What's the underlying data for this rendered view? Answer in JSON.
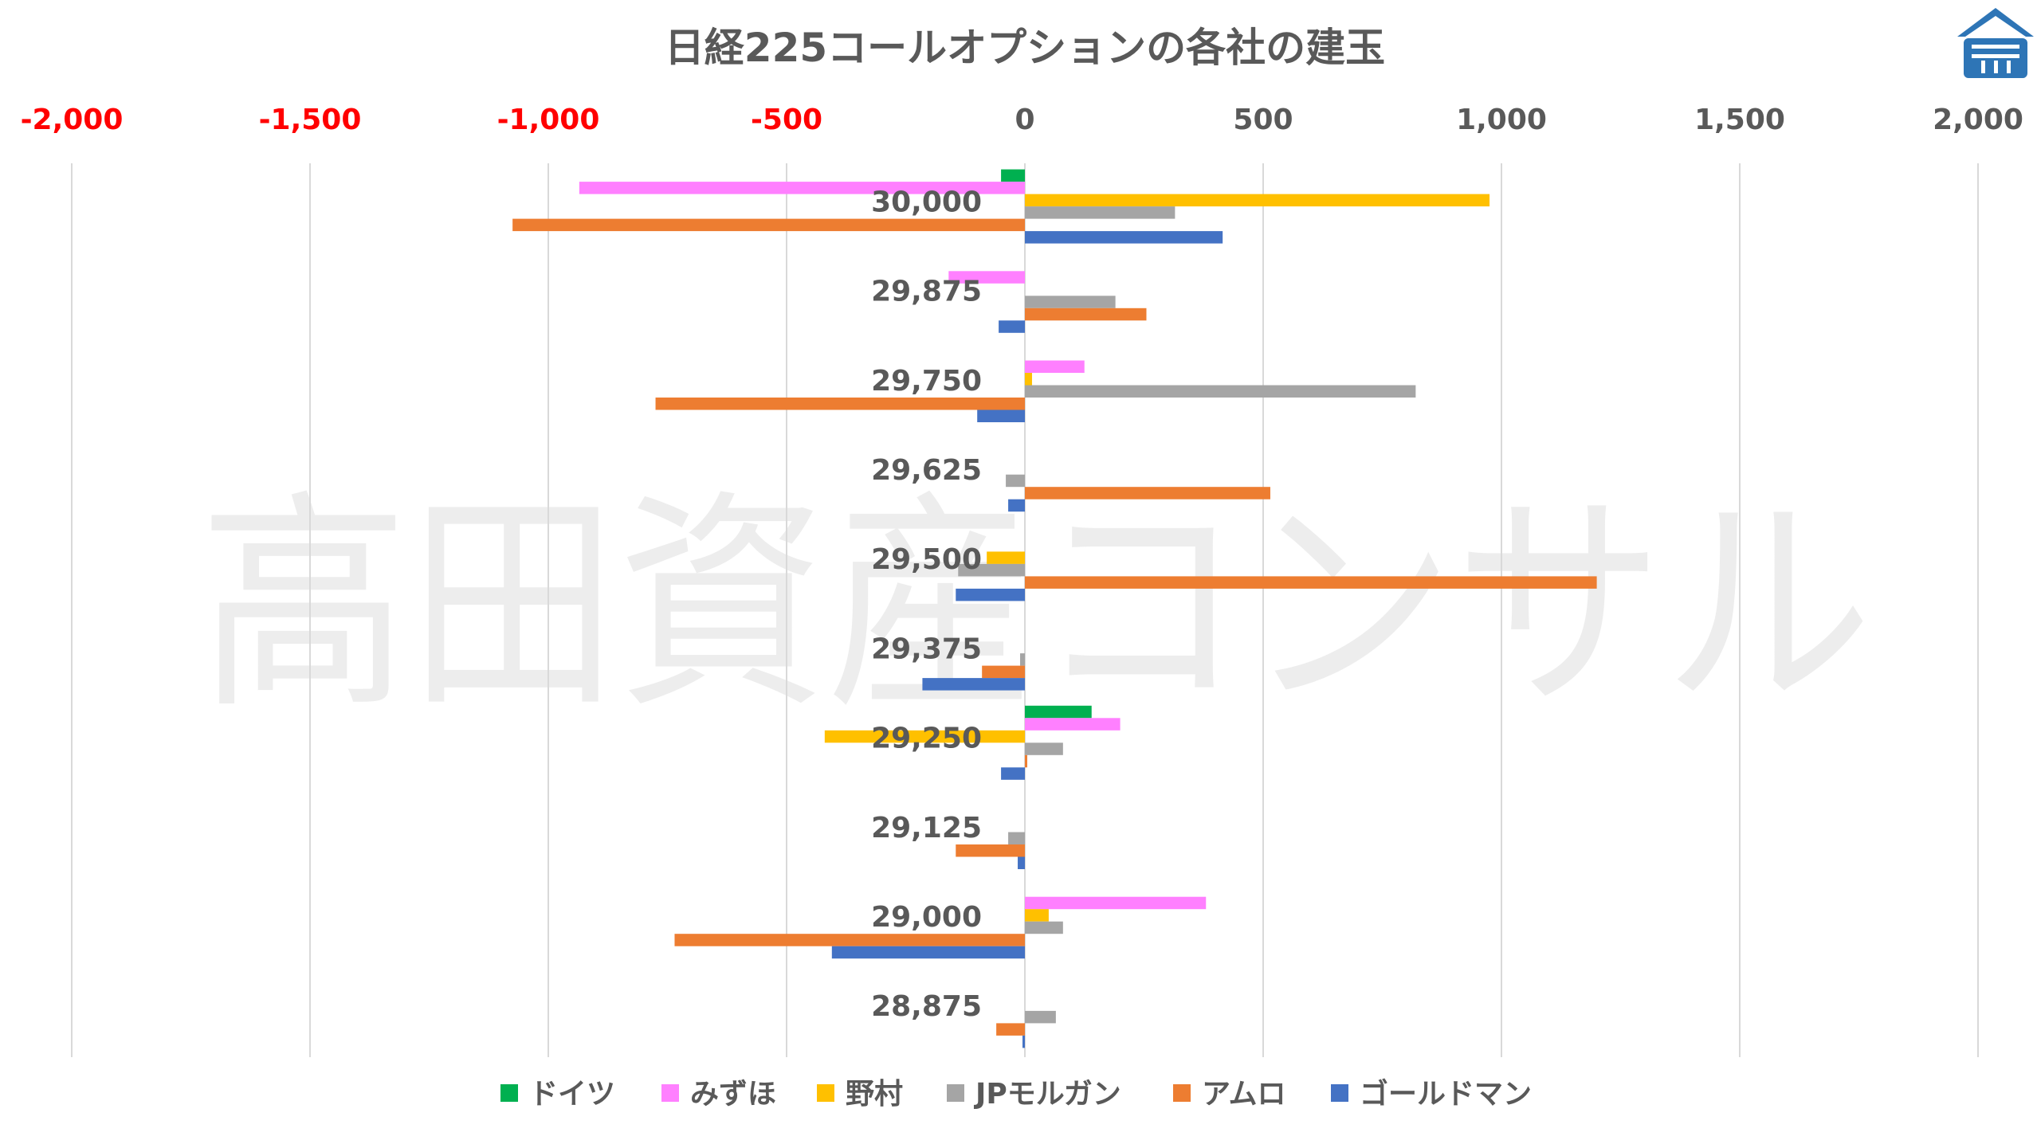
{
  "watermark": "高田資産コンサル",
  "logo_icon": "house-roof-logo-icon",
  "colors": {
    "ドイツ": "#00b050",
    "みずほ": "#ff80ff",
    "野村": "#ffc000",
    "JPモルガン": "#a5a5a5",
    "アムロ": "#ed7d31",
    "ゴールドマン": "#4472c4",
    "negative_tick": "#ff0000",
    "positive_tick": "#595959",
    "gridline": "#d9d9d9",
    "logo": "#2e75b6"
  },
  "chart_data": {
    "type": "bar",
    "orientation": "horizontal",
    "title": "日経225コールオプションの各社の建玉",
    "xlim": [
      -2000,
      2000
    ],
    "x_ticks": [
      -2000,
      -1500,
      -1000,
      -500,
      0,
      500,
      1000,
      1500,
      2000
    ],
    "x_tick_labels": [
      "-2,000",
      "-1,500",
      "-1,000",
      "-500",
      "0",
      "500",
      "1,000",
      "1,500",
      "2,000"
    ],
    "x_axis_position": "top",
    "grid": "vertical",
    "legend_position": "bottom",
    "categories": [
      "30,000",
      "29,875",
      "29,750",
      "29,625",
      "29,500",
      "29,375",
      "29,250",
      "29,125",
      "29,000",
      "28,875"
    ],
    "series": [
      {
        "name": "ドイツ",
        "values": [
          -50,
          0,
          0,
          0,
          0,
          0,
          140,
          0,
          0,
          0
        ]
      },
      {
        "name": "みずほ",
        "values": [
          -935,
          -160,
          125,
          0,
          0,
          0,
          200,
          0,
          380,
          0
        ]
      },
      {
        "name": "野村",
        "values": [
          975,
          0,
          15,
          0,
          -80,
          0,
          -420,
          0,
          50,
          0
        ]
      },
      {
        "name": "JPモルガン",
        "values": [
          315,
          190,
          820,
          -40,
          -140,
          -10,
          80,
          -35,
          80,
          65
        ]
      },
      {
        "name": "アムロ",
        "values": [
          -1075,
          255,
          -775,
          515,
          1200,
          -90,
          5,
          -145,
          -735,
          -60
        ]
      },
      {
        "name": "ゴールドマン",
        "values": [
          415,
          -55,
          -100,
          -35,
          -145,
          -215,
          -50,
          -15,
          -405,
          -5
        ]
      }
    ]
  }
}
